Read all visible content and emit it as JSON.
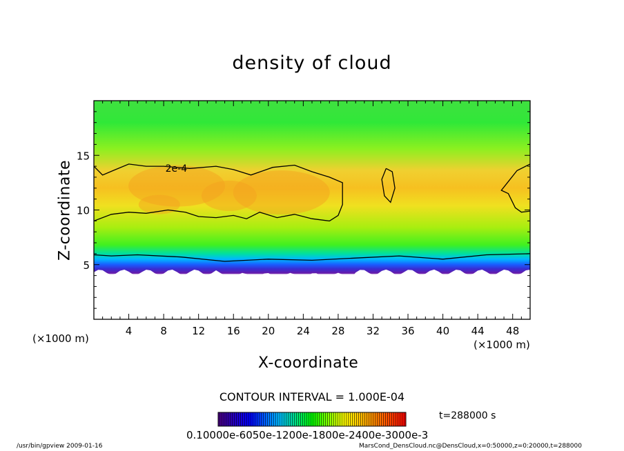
{
  "chart_data": {
    "type": "heatmap",
    "title": "density of cloud",
    "xlabel": "X-coordinate",
    "ylabel": "Z-coordinate",
    "x_unit": "(×1000 m)",
    "xlim": [
      0,
      50
    ],
    "ylim": [
      0,
      20
    ],
    "x_ticks": [
      4,
      8,
      12,
      16,
      20,
      24,
      28,
      32,
      36,
      40,
      44,
      48
    ],
    "y_ticks": [
      5,
      10,
      15
    ],
    "contour_label": "2e-4",
    "contour_interval": "CONTOUR INTERVAL = 1.000E-04",
    "time": "t=288000 s",
    "colorbar_labels": "0.10000e-6050e-1200e-1800e-2400e-3000e-3",
    "colormap": [
      "#4b0082",
      "#0000ff",
      "#00bfff",
      "#00ff00",
      "#ffff00",
      "#ff8c00",
      "#ff0000"
    ],
    "field_profile": {
      "z": [
        0,
        4.2,
        4.6,
        5.0,
        5.5,
        6.0,
        6.8,
        8.5,
        10,
        11.5,
        13,
        15,
        17,
        20
      ],
      "value": [
        null,
        0.1,
        0.25,
        0.4,
        0.55,
        0.7,
        0.82,
        0.88,
        0.93,
        0.97,
        0.93,
        0.85,
        0.72,
        0.55
      ]
    }
  },
  "footer": {
    "left": "/usr/bin/gpview   2009-01-16",
    "right": "MarsCond_DensCloud.nc@DensCloud,x=0:50000,z=0:20000,t=288000"
  }
}
